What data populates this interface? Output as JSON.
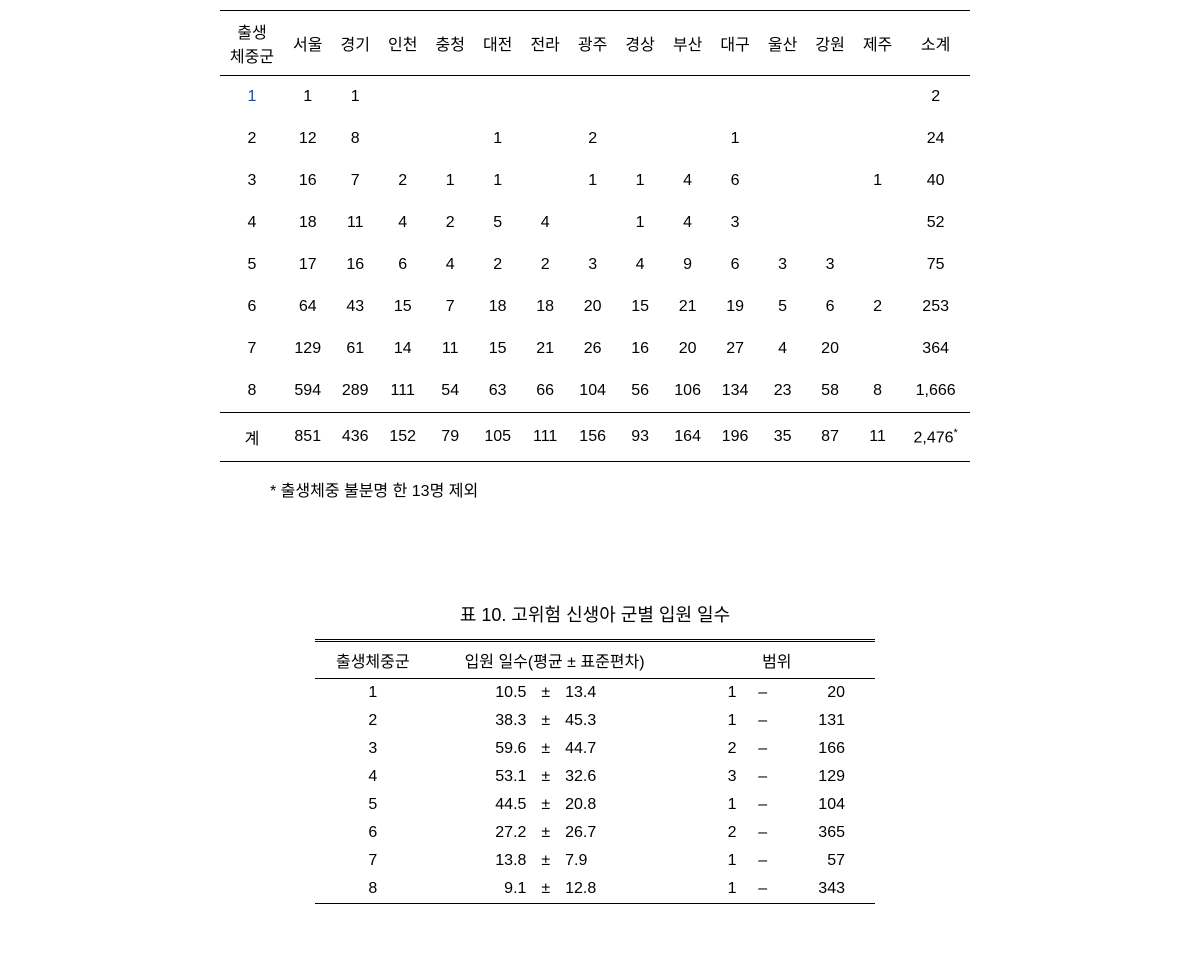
{
  "table1": {
    "headers": [
      "출생\n체중군",
      "서울",
      "경기",
      "인천",
      "충청",
      "대전",
      "전라",
      "광주",
      "경상",
      "부산",
      "대구",
      "울산",
      "강원",
      "제주",
      "소계"
    ],
    "rows": [
      {
        "group": "1",
        "vals": [
          "1",
          "1",
          "",
          "",
          "",
          "",
          "",
          "",
          "",
          "",
          "",
          "",
          "",
          ""
        ],
        "total": "2",
        "link": true
      },
      {
        "group": "2",
        "vals": [
          "12",
          "8",
          "",
          "",
          "1",
          "",
          "2",
          "",
          "",
          "1",
          "",
          "",
          "",
          ""
        ],
        "total": "24"
      },
      {
        "group": "3",
        "vals": [
          "16",
          "7",
          "2",
          "1",
          "1",
          "",
          "1",
          "1",
          "4",
          "6",
          "",
          "",
          "1"
        ],
        "total": "40"
      },
      {
        "group": "4",
        "vals": [
          "18",
          "11",
          "4",
          "2",
          "5",
          "4",
          "",
          "1",
          "4",
          "3",
          "",
          "",
          "",
          ""
        ],
        "total": "52"
      },
      {
        "group": "5",
        "vals": [
          "17",
          "16",
          "6",
          "4",
          "2",
          "2",
          "3",
          "4",
          "9",
          "6",
          "3",
          "3",
          ""
        ],
        "total": "75"
      },
      {
        "group": "6",
        "vals": [
          "64",
          "43",
          "15",
          "7",
          "18",
          "18",
          "20",
          "15",
          "21",
          "19",
          "5",
          "6",
          "2"
        ],
        "total": "253"
      },
      {
        "group": "7",
        "vals": [
          "129",
          "61",
          "14",
          "11",
          "15",
          "21",
          "26",
          "16",
          "20",
          "27",
          "4",
          "20",
          ""
        ],
        "total": "364"
      },
      {
        "group": "8",
        "vals": [
          "594",
          "289",
          "111",
          "54",
          "63",
          "66",
          "104",
          "56",
          "106",
          "134",
          "23",
          "58",
          "8"
        ],
        "total": "1,666"
      }
    ],
    "footer": {
      "group": "계",
      "vals": [
        "851",
        "436",
        "152",
        "79",
        "105",
        "111",
        "156",
        "93",
        "164",
        "196",
        "35",
        "87",
        "11"
      ],
      "total": "2,476",
      "sup": "*"
    },
    "footnote": "* 출생체중 불분명 한 13명 제외"
  },
  "table2": {
    "title": "표 10. 고위험 신생아 군별 입원 일수",
    "headers": [
      "출생체중군",
      "입원 일수(평균 ± 표준편차)",
      "범위"
    ],
    "rows": [
      {
        "g": "1",
        "m": "10.5",
        "s": "13.4",
        "rmin": "1",
        "rmax": "20"
      },
      {
        "g": "2",
        "m": "38.3",
        "s": "45.3",
        "rmin": "1",
        "rmax": "131"
      },
      {
        "g": "3",
        "m": "59.6",
        "s": "44.7",
        "rmin": "2",
        "rmax": "166"
      },
      {
        "g": "4",
        "m": "53.1",
        "s": "32.6",
        "rmin": "3",
        "rmax": "129"
      },
      {
        "g": "5",
        "m": "44.5",
        "s": "20.8",
        "rmin": "1",
        "rmax": "104"
      },
      {
        "g": "6",
        "m": "27.2",
        "s": "26.7",
        "rmin": "2",
        "rmax": "365"
      },
      {
        "g": "7",
        "m": "13.8",
        "s": "7.9",
        "rmin": "1",
        "rmax": "57"
      },
      {
        "g": "8",
        "m": "9.1",
        "s": "12.8",
        "rmin": "1",
        "rmax": "343"
      }
    ]
  }
}
